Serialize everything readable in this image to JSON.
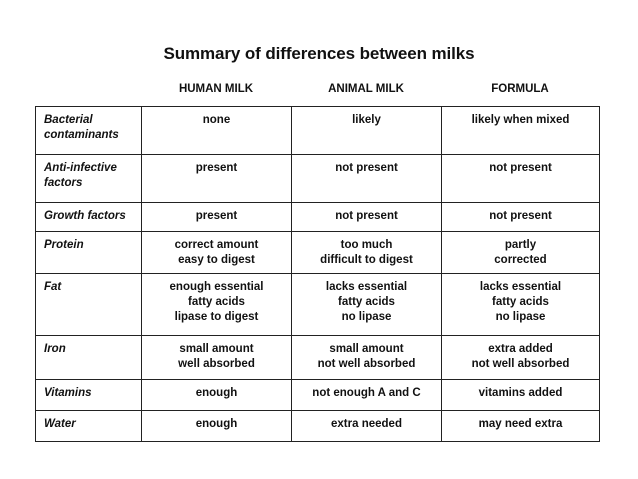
{
  "title": "Summary of differences between milks",
  "columns": [
    "HUMAN MILK",
    "ANIMAL MILK",
    "FORMULA"
  ],
  "rows": [
    {
      "label": [
        "Bacterial",
        "contaminants"
      ],
      "human": [
        "none"
      ],
      "animal": [
        "likely"
      ],
      "formula": [
        "likely when mixed"
      ]
    },
    {
      "label": [
        "Anti-infective",
        "factors"
      ],
      "human": [
        "present"
      ],
      "animal": [
        "not present"
      ],
      "formula": [
        "not present"
      ]
    },
    {
      "label": [
        "Growth factors"
      ],
      "human": [
        "present"
      ],
      "animal": [
        "not present"
      ],
      "formula": [
        "not present"
      ]
    },
    {
      "label": [
        "Protein"
      ],
      "human": [
        "correct amount",
        "easy to digest"
      ],
      "animal": [
        "too much",
        "difficult to digest"
      ],
      "formula": [
        "partly",
        "corrected"
      ]
    },
    {
      "label": [
        "Fat"
      ],
      "human": [
        "enough essential",
        "fatty acids",
        "lipase to digest"
      ],
      "animal": [
        "lacks essential",
        "fatty acids",
        "no lipase"
      ],
      "formula": [
        "lacks essential",
        "fatty acids",
        "no lipase"
      ]
    },
    {
      "label": [
        "Iron"
      ],
      "human": [
        "small amount",
        "well absorbed"
      ],
      "animal": [
        "small amount",
        "not well absorbed"
      ],
      "formula": [
        "extra added",
        "not well absorbed"
      ]
    },
    {
      "label": [
        "Vitamins"
      ],
      "human": [
        "enough"
      ],
      "animal": [
        "not enough A and C"
      ],
      "formula": [
        "vitamins added"
      ]
    },
    {
      "label": [
        "Water"
      ],
      "human": [
        "enough"
      ],
      "animal": [
        "extra needed"
      ],
      "formula": [
        "may need extra"
      ]
    }
  ]
}
